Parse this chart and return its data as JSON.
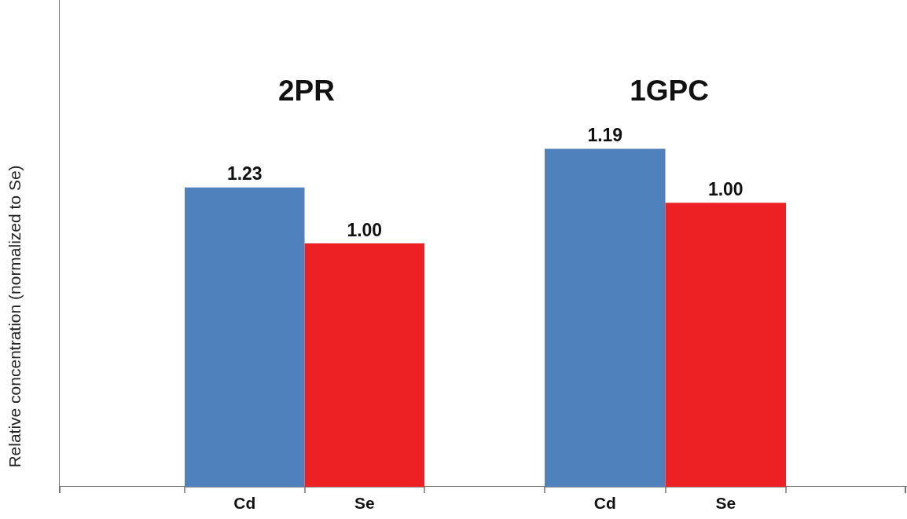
{
  "chart_data": [
    {
      "type": "bar",
      "title": "2PR",
      "ylabel": "Relative concentration (normalized to Se)",
      "categories": [
        "Cd",
        "Se"
      ],
      "values": [
        1.23,
        1.0
      ],
      "colors": [
        "#4f81bd",
        "#ed2024"
      ],
      "value_labels": [
        "1.23",
        "1.00"
      ],
      "tick_labels": "x"
    },
    {
      "type": "bar",
      "title": "1GPC",
      "categories": [
        "Cd",
        "Se"
      ],
      "values": [
        1.19,
        1.0
      ],
      "colors": [
        "#4f81bd",
        "#ed2024"
      ],
      "value_labels": [
        "1.19",
        "1.00"
      ],
      "tick_labels": "x"
    }
  ]
}
